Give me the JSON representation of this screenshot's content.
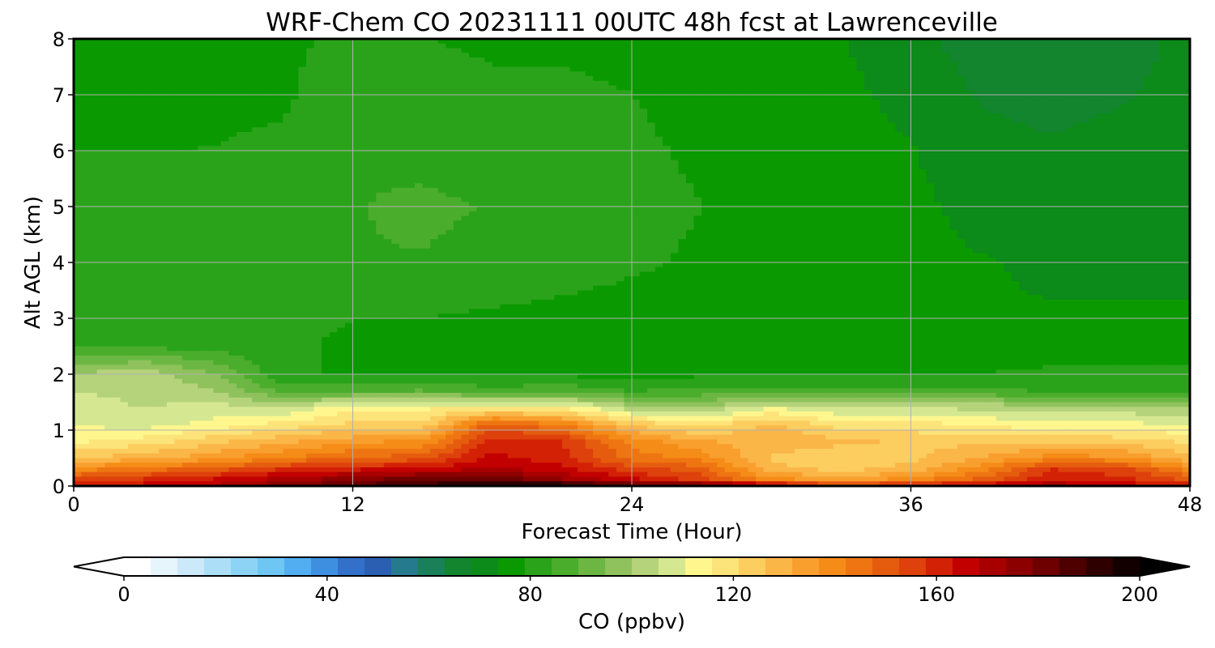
{
  "chart_data": [
    {
      "type": "heatmap",
      "title": "WRF-Chem CO  20231111 00UTC 48h fcst at Lawrenceville",
      "xlabel": "Forecast Time (Hour)",
      "ylabel": "Alt AGL (km)",
      "xlim": [
        0,
        48
      ],
      "ylim": [
        0,
        8
      ],
      "xticks": [
        0,
        12,
        24,
        36,
        48
      ],
      "yticks": [
        0,
        1,
        2,
        3,
        4,
        5,
        6,
        7,
        8
      ],
      "grid": true,
      "x": [
        0,
        3,
        6,
        9,
        12,
        15,
        18,
        21,
        24,
        27,
        30,
        33,
        36,
        39,
        42,
        45,
        48
      ],
      "y": [
        0,
        0.1,
        0.3,
        0.5,
        0.8,
        1.1,
        1.4,
        1.7,
        2.0,
        2.5,
        3.0,
        4.0,
        5.0,
        6.0,
        7.0,
        8.0
      ],
      "z": [
        [
          160,
          165,
          170,
          178,
          185,
          192,
          195,
          200,
          188,
          188,
          175,
          160,
          165,
          170,
          175,
          168,
          162
        ],
        [
          155,
          160,
          165,
          172,
          178,
          185,
          185,
          175,
          165,
          155,
          140,
          135,
          140,
          150,
          162,
          160,
          152
        ],
        [
          140,
          145,
          150,
          158,
          162,
          165,
          170,
          165,
          155,
          150,
          128,
          125,
          128,
          140,
          158,
          155,
          140
        ],
        [
          125,
          130,
          135,
          142,
          148,
          150,
          165,
          160,
          145,
          140,
          125,
          122,
          125,
          132,
          140,
          138,
          128
        ],
        [
          115,
          118,
          125,
          130,
          135,
          138,
          160,
          158,
          140,
          132,
          130,
          128,
          125,
          125,
          125,
          124,
          120
        ],
        [
          110,
          108,
          112,
          118,
          122,
          122,
          150,
          142,
          125,
          118,
          128,
          118,
          118,
          115,
          112,
          112,
          110
        ],
        [
          108,
          105,
          108,
          105,
          115,
          115,
          115,
          115,
          102,
          100,
          110,
          105,
          105,
          104,
          103,
          102,
          100
        ],
        [
          105,
          104,
          100,
          88,
          88,
          90,
          86,
          88,
          84,
          86,
          86,
          85,
          85,
          85,
          84,
          84,
          84
        ],
        [
          100,
          104,
          95,
          80,
          78,
          78,
          78,
          78,
          76,
          78,
          78,
          78,
          78,
          79,
          80,
          80,
          80
        ],
        [
          84,
          83,
          82,
          80,
          78,
          78,
          78,
          77,
          76,
          76,
          76,
          76,
          76,
          76,
          76,
          76,
          76
        ],
        [
          82,
          81,
          81,
          80,
          79,
          79,
          78,
          77,
          76,
          76,
          76,
          75,
          75,
          74,
          74,
          74,
          74
        ],
        [
          81,
          81,
          82,
          83,
          84,
          84,
          83,
          82,
          80,
          78,
          77,
          76,
          75,
          74,
          73,
          73,
          73
        ],
        [
          80,
          80,
          81,
          82,
          84,
          85,
          84,
          83,
          81,
          79,
          77,
          76,
          75,
          72,
          71,
          71,
          72
        ],
        [
          79,
          79,
          79,
          80,
          84,
          83,
          82,
          81,
          80,
          78,
          77,
          76,
          74,
          70,
          69,
          70,
          72
        ],
        [
          77,
          77,
          78,
          78,
          83,
          82,
          80,
          80,
          79,
          77,
          75,
          75,
          72,
          68,
          67,
          68,
          70
        ],
        [
          76,
          76,
          77,
          78,
          80,
          79,
          78,
          78,
          77,
          76,
          74,
          74,
          70,
          66,
          65,
          66,
          70
        ]
      ],
      "colorbar": {
        "label": "CO  (ppbv)",
        "range": [
          0,
          200
        ],
        "ticks": [
          0,
          40,
          80,
          120,
          160,
          200
        ],
        "extend": "both",
        "colors": [
          "#ffffff",
          "#e6f4fc",
          "#cbe9f9",
          "#acdff7",
          "#8dd3f5",
          "#6ec7f3",
          "#52aef0",
          "#3e8fe0",
          "#3370c9",
          "#2a5fb2",
          "#267a8e",
          "#1a8058",
          "#12852e",
          "#0c8a1a",
          "#0a9a00",
          "#2aa31a",
          "#4bad2c",
          "#6cb743",
          "#8fc25c",
          "#b5d37a",
          "#d5e891",
          "#fff78e",
          "#fde47a",
          "#fccd5f",
          "#fbb648",
          "#f99f2e",
          "#f58c17",
          "#ee7511",
          "#e65c0e",
          "#de410b",
          "#d32106",
          "#c30000",
          "#a80000",
          "#8c0000",
          "#6e0000",
          "#4e0000",
          "#2e0000",
          "#120000",
          "#000000"
        ]
      }
    }
  ]
}
